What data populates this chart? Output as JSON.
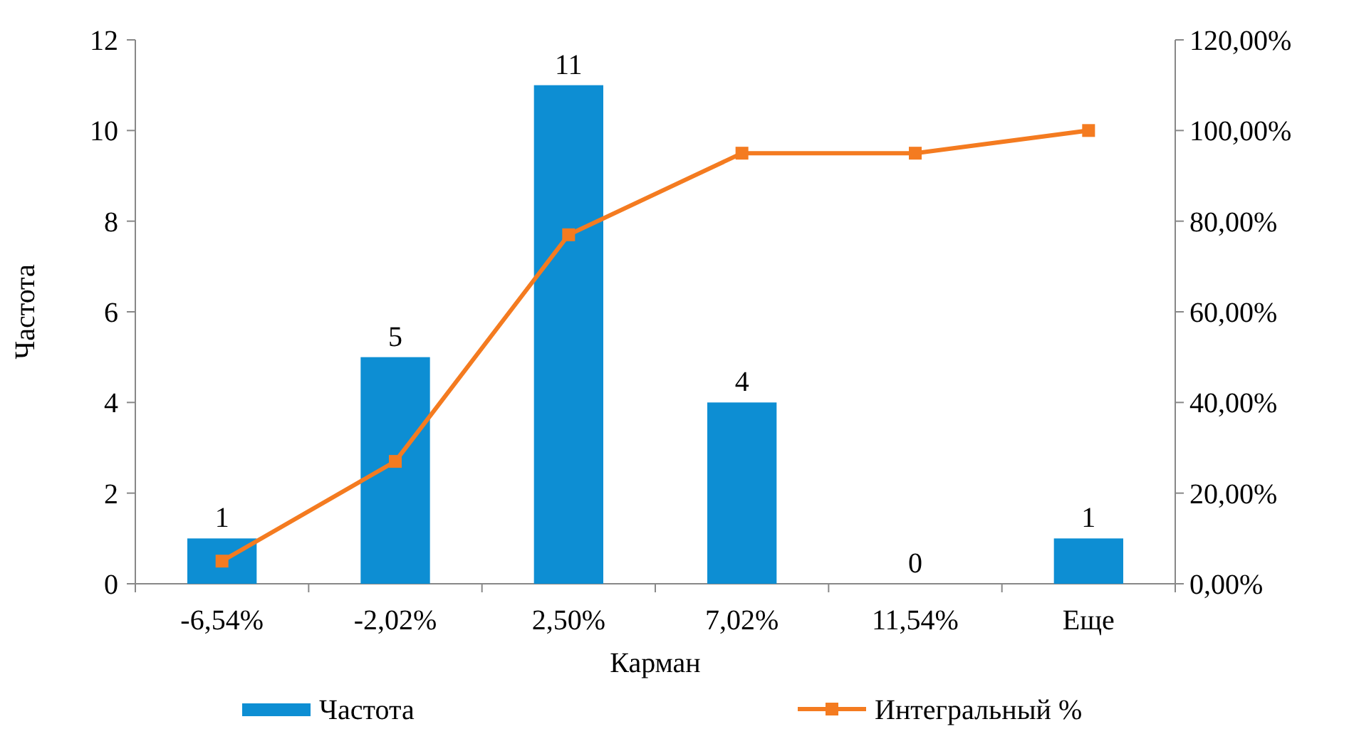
{
  "chart_data": {
    "type": "bar",
    "xlabel": "Карман",
    "ylabel": "Частота",
    "categories": [
      "-6,54%",
      "-2,02%",
      "2,50%",
      "7,02%",
      "11,54%",
      "Еще"
    ],
    "series": [
      {
        "name": "Частота",
        "color": "#0d8ed3",
        "values": [
          1,
          5,
          11,
          4,
          0,
          1
        ],
        "value_labels": [
          "1",
          "5",
          "11",
          "4",
          "0",
          "1"
        ]
      },
      {
        "name": "Интегральный %",
        "type": "line",
        "axis": "y2",
        "color": "#f47b20",
        "marker": "square",
        "values": [
          5,
          27,
          77,
          95,
          95,
          100
        ]
      }
    ],
    "ylim": [
      0,
      12
    ],
    "yticks": [
      0,
      2,
      4,
      6,
      8,
      10,
      12
    ],
    "y2lim": [
      0,
      120
    ],
    "y2ticks": [
      {
        "value": 0,
        "label": "0,00%"
      },
      {
        "value": 20,
        "label": "20,00%"
      },
      {
        "value": 40,
        "label": "40,00%"
      },
      {
        "value": 60,
        "label": "60,00%"
      },
      {
        "value": 80,
        "label": "80,00%"
      },
      {
        "value": 100,
        "label": "100,00%"
      },
      {
        "value": 120,
        "label": "120,00%"
      }
    ],
    "grid": false,
    "legend": "bottom"
  }
}
